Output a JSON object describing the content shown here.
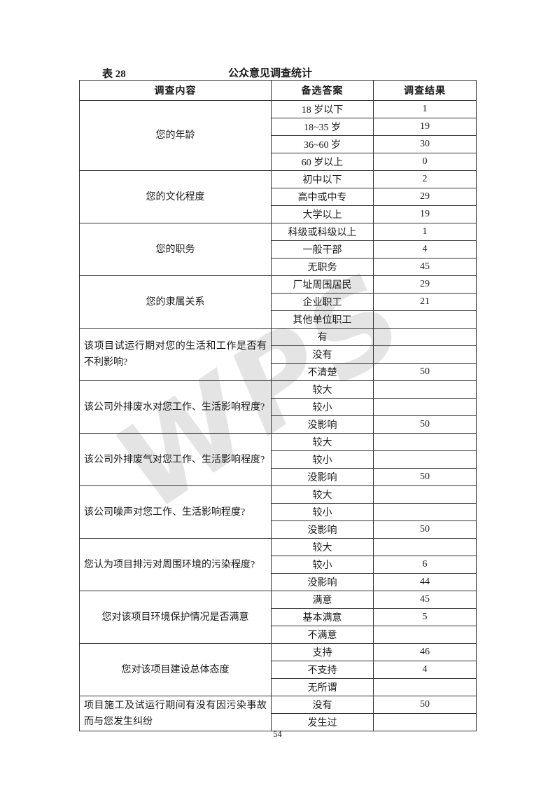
{
  "page": {
    "table_label": "表 28",
    "title": "公众意见调查统计",
    "page_number": "54",
    "watermark_text": "WPS",
    "watermark_color": "#e4e4e4"
  },
  "table": {
    "headers": [
      "调查内容",
      "备选答案",
      "调查结果"
    ],
    "groups": [
      {
        "question": "您的年龄",
        "align": "center",
        "rows": [
          {
            "option": "18 岁以下",
            "result": "1"
          },
          {
            "option": "18~35 岁",
            "result": "19"
          },
          {
            "option": "36~60 岁",
            "result": "30"
          },
          {
            "option": "60 岁以上",
            "result": "0"
          }
        ]
      },
      {
        "question": "您的文化程度",
        "align": "center",
        "rows": [
          {
            "option": "初中以下",
            "result": "2"
          },
          {
            "option": "高中或中专",
            "result": "29"
          },
          {
            "option": "大学以上",
            "result": "19"
          }
        ]
      },
      {
        "question": "您的职务",
        "align": "center",
        "rows": [
          {
            "option": "科级或科级以上",
            "result": "1"
          },
          {
            "option": "一般干部",
            "result": "4"
          },
          {
            "option": "无职务",
            "result": "45"
          }
        ]
      },
      {
        "question": "您的隶属关系",
        "align": "center",
        "rows": [
          {
            "option": "厂址周围居民",
            "result": "29"
          },
          {
            "option": "企业职工",
            "result": "21"
          },
          {
            "option": "其他单位职工",
            "result": ""
          }
        ]
      },
      {
        "question": "该项目试运行期对您的生活和工作是否有不利影响?",
        "align": "justify",
        "rows": [
          {
            "option": "有",
            "result": ""
          },
          {
            "option": "没有",
            "result": ""
          },
          {
            "option": "不清楚",
            "result": "50"
          }
        ]
      },
      {
        "question": "该公司外排废水对您工作、生活影响程度?",
        "align": "justify",
        "rows": [
          {
            "option": "较大",
            "result": ""
          },
          {
            "option": "较小",
            "result": ""
          },
          {
            "option": "没影响",
            "result": "50"
          }
        ]
      },
      {
        "question": "该公司外排废气对您工作、生活影响程度?",
        "align": "justify",
        "rows": [
          {
            "option": "较大",
            "result": ""
          },
          {
            "option": "较小",
            "result": ""
          },
          {
            "option": "没影响",
            "result": "50"
          }
        ]
      },
      {
        "question": "该公司噪声对您工作、生活影响程度?",
        "align": "justify",
        "rows": [
          {
            "option": "较大",
            "result": ""
          },
          {
            "option": "较小",
            "result": ""
          },
          {
            "option": "没影响",
            "result": "50"
          }
        ]
      },
      {
        "question": "您认为项目排污对周围环境的污染程度?",
        "align": "justify",
        "rows": [
          {
            "option": "较大",
            "result": ""
          },
          {
            "option": "较小",
            "result": "6"
          },
          {
            "option": "没影响",
            "result": "44"
          }
        ]
      },
      {
        "question": "您对该项目环境保护情况是否满意",
        "align": "center",
        "rows": [
          {
            "option": "满意",
            "result": "45"
          },
          {
            "option": "基本满意",
            "result": "5"
          },
          {
            "option": "不满意",
            "result": ""
          }
        ]
      },
      {
        "question": "您对该项目建设总体态度",
        "align": "center",
        "rows": [
          {
            "option": "支持",
            "result": "46"
          },
          {
            "option": "不支持",
            "result": "4"
          },
          {
            "option": "无所谓",
            "result": ""
          }
        ]
      },
      {
        "question": "项目施工及试运行期间有没有因污染事故而与您发生纠纷",
        "align": "justify",
        "rows": [
          {
            "option": "没有",
            "result": "50"
          },
          {
            "option": "发生过",
            "result": ""
          }
        ]
      }
    ]
  }
}
